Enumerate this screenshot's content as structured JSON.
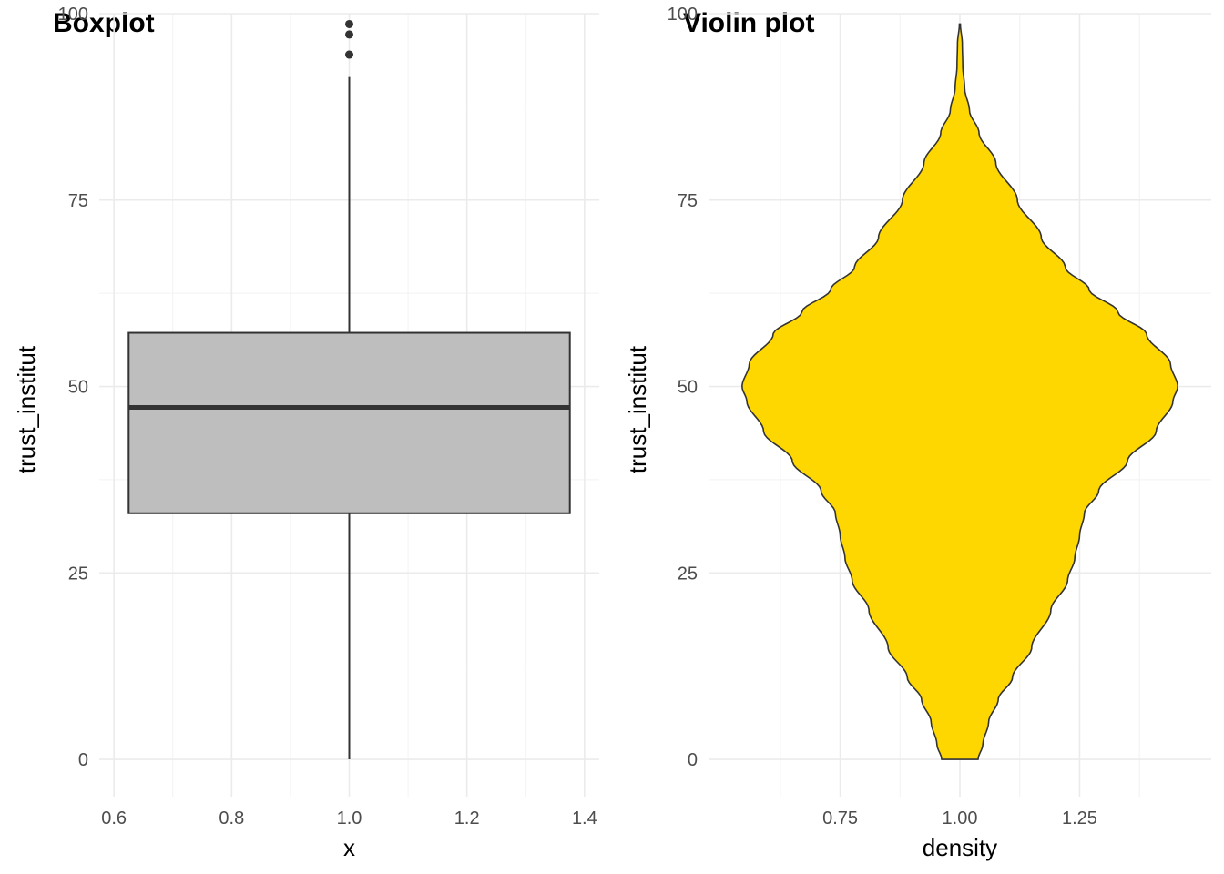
{
  "chart_data": [
    {
      "type": "boxplot",
      "title": "Boxplot",
      "xlabel": "x",
      "ylabel": "trust_institut",
      "xlim": [
        0.575,
        1.425
      ],
      "ylim": [
        -5,
        100
      ],
      "x_ticks": [
        0.6,
        0.8,
        1.0,
        1.2,
        1.4
      ],
      "x_tick_labels": [
        "0.6",
        "0.8",
        "1.0",
        "1.2",
        "1.4"
      ],
      "y_ticks": [
        0,
        25,
        50,
        75,
        100
      ],
      "y_tick_labels": [
        "0",
        "25",
        "50",
        "75",
        "100"
      ],
      "grid": true,
      "box": {
        "x": 1.0,
        "width": 0.75,
        "min": 0,
        "q1": 33,
        "median": 47.2,
        "q3": 57.2,
        "max": 91.5,
        "outliers": [
          94.5,
          97.2,
          98.6
        ],
        "fill": "#bebebe",
        "stroke": "#333333"
      }
    },
    {
      "type": "violin",
      "title": "Violin plot",
      "xlabel": "density",
      "ylabel": "trust_institut",
      "xlim": [
        0.475,
        1.525
      ],
      "ylim": [
        -5,
        100
      ],
      "x_ticks": [
        0.75,
        1.0,
        1.25
      ],
      "x_tick_labels": [
        "0.75",
        "1.00",
        "1.25"
      ],
      "y_ticks": [
        0,
        25,
        50,
        75,
        100
      ],
      "y_tick_labels": [
        "0",
        "25",
        "50",
        "75",
        "100"
      ],
      "grid": true,
      "violin": {
        "center": 1.0,
        "fill": "#ffd700",
        "stroke": "#333333",
        "profile": [
          {
            "y": 0,
            "half_width": 0.038
          },
          {
            "y": 2,
            "half_width": 0.048
          },
          {
            "y": 5,
            "half_width": 0.06
          },
          {
            "y": 8,
            "half_width": 0.08
          },
          {
            "y": 11,
            "half_width": 0.11
          },
          {
            "y": 15,
            "half_width": 0.15
          },
          {
            "y": 20,
            "half_width": 0.19
          },
          {
            "y": 24,
            "half_width": 0.225
          },
          {
            "y": 27,
            "half_width": 0.24
          },
          {
            "y": 30,
            "half_width": 0.25
          },
          {
            "y": 33,
            "half_width": 0.26
          },
          {
            "y": 36,
            "half_width": 0.29
          },
          {
            "y": 40,
            "half_width": 0.35
          },
          {
            "y": 44,
            "half_width": 0.41
          },
          {
            "y": 48,
            "half_width": 0.445
          },
          {
            "y": 50,
            "half_width": 0.455
          },
          {
            "y": 53,
            "half_width": 0.44
          },
          {
            "y": 57,
            "half_width": 0.39
          },
          {
            "y": 60,
            "half_width": 0.33
          },
          {
            "y": 63,
            "half_width": 0.27
          },
          {
            "y": 66,
            "half_width": 0.22
          },
          {
            "y": 70,
            "half_width": 0.17
          },
          {
            "y": 75,
            "half_width": 0.12
          },
          {
            "y": 80,
            "half_width": 0.075
          },
          {
            "y": 84,
            "half_width": 0.04
          },
          {
            "y": 87,
            "half_width": 0.02
          },
          {
            "y": 90,
            "half_width": 0.01
          },
          {
            "y": 93,
            "half_width": 0.006
          },
          {
            "y": 96,
            "half_width": 0.005
          },
          {
            "y": 98.6,
            "half_width": 0.001
          }
        ]
      }
    }
  ]
}
